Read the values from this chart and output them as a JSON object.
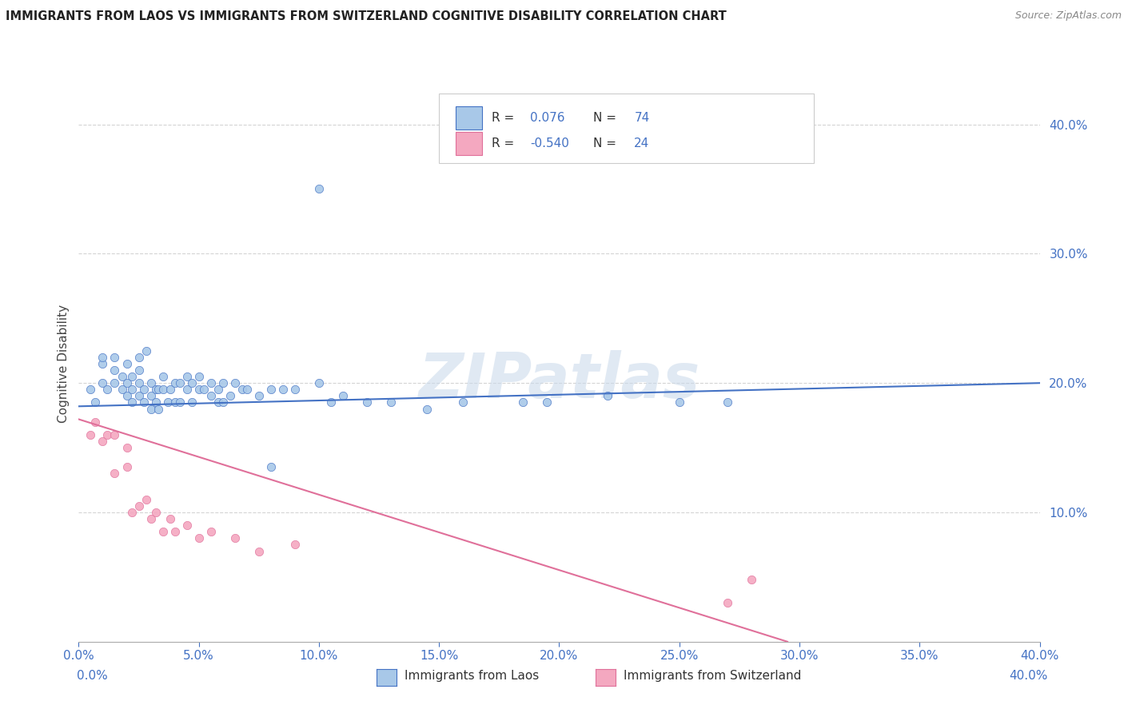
{
  "title": "IMMIGRANTS FROM LAOS VS IMMIGRANTS FROM SWITZERLAND COGNITIVE DISABILITY CORRELATION CHART",
  "source": "Source: ZipAtlas.com",
  "ylabel": "Cognitive Disability",
  "ytick_vals": [
    0.1,
    0.2,
    0.3,
    0.4
  ],
  "xlim": [
    0.0,
    0.4
  ],
  "ylim": [
    0.0,
    0.43
  ],
  "legend_laos_R": 0.076,
  "legend_laos_N": 74,
  "legend_swiss_R": -0.54,
  "legend_swiss_N": 24,
  "color_laos": "#a8c8e8",
  "color_swiss": "#f4a8c0",
  "line_laos": "#4472c4",
  "line_swiss": "#e0709a",
  "background_color": "#ffffff",
  "grid_color": "#d0d0d0",
  "laos_x": [
    0.005,
    0.007,
    0.01,
    0.01,
    0.01,
    0.012,
    0.015,
    0.015,
    0.015,
    0.018,
    0.018,
    0.02,
    0.02,
    0.02,
    0.022,
    0.022,
    0.022,
    0.025,
    0.025,
    0.025,
    0.025,
    0.027,
    0.027,
    0.028,
    0.03,
    0.03,
    0.03,
    0.032,
    0.032,
    0.033,
    0.033,
    0.035,
    0.035,
    0.037,
    0.038,
    0.04,
    0.04,
    0.042,
    0.042,
    0.045,
    0.045,
    0.047,
    0.047,
    0.05,
    0.05,
    0.052,
    0.055,
    0.055,
    0.058,
    0.058,
    0.06,
    0.06,
    0.063,
    0.065,
    0.068,
    0.07,
    0.075,
    0.08,
    0.085,
    0.09,
    0.1,
    0.105,
    0.11,
    0.12,
    0.13,
    0.145,
    0.16,
    0.185,
    0.195,
    0.22,
    0.25,
    0.27,
    0.1,
    0.08
  ],
  "laos_y": [
    0.195,
    0.185,
    0.2,
    0.215,
    0.22,
    0.195,
    0.2,
    0.21,
    0.22,
    0.195,
    0.205,
    0.19,
    0.2,
    0.215,
    0.185,
    0.195,
    0.205,
    0.19,
    0.2,
    0.21,
    0.22,
    0.185,
    0.195,
    0.225,
    0.18,
    0.19,
    0.2,
    0.185,
    0.195,
    0.18,
    0.195,
    0.195,
    0.205,
    0.185,
    0.195,
    0.185,
    0.2,
    0.185,
    0.2,
    0.195,
    0.205,
    0.185,
    0.2,
    0.195,
    0.205,
    0.195,
    0.19,
    0.2,
    0.185,
    0.195,
    0.185,
    0.2,
    0.19,
    0.2,
    0.195,
    0.195,
    0.19,
    0.195,
    0.195,
    0.195,
    0.2,
    0.185,
    0.19,
    0.185,
    0.185,
    0.18,
    0.185,
    0.185,
    0.185,
    0.19,
    0.185,
    0.185,
    0.35,
    0.135
  ],
  "swiss_x": [
    0.005,
    0.007,
    0.01,
    0.012,
    0.015,
    0.015,
    0.02,
    0.02,
    0.022,
    0.025,
    0.028,
    0.03,
    0.032,
    0.035,
    0.038,
    0.04,
    0.045,
    0.05,
    0.055,
    0.065,
    0.075,
    0.09,
    0.27,
    0.28
  ],
  "swiss_y": [
    0.16,
    0.17,
    0.155,
    0.16,
    0.16,
    0.13,
    0.135,
    0.15,
    0.1,
    0.105,
    0.11,
    0.095,
    0.1,
    0.085,
    0.095,
    0.085,
    0.09,
    0.08,
    0.085,
    0.08,
    0.07,
    0.075,
    0.03,
    0.048
  ],
  "laos_line_x0": 0.0,
  "laos_line_x1": 0.4,
  "laos_line_y0": 0.182,
  "laos_line_y1": 0.2,
  "swiss_line_x0": 0.0,
  "swiss_line_x1": 0.295,
  "swiss_line_y0": 0.172,
  "swiss_line_y1": 0.0
}
